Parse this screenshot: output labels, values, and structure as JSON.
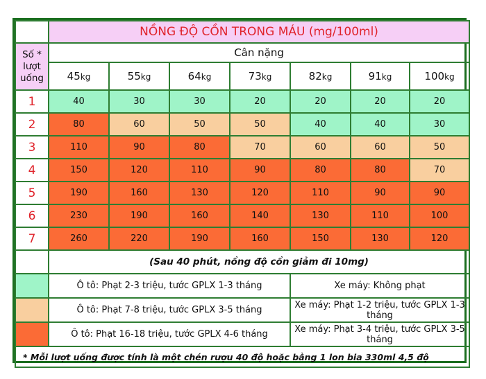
{
  "title": "NỒNG ĐỘ CỒN TRONG MÁU (mg/100ml)",
  "row_header": "Số * lượt uống",
  "col_group_header": "Cân nặng",
  "unit": "kg",
  "weights": [
    "45",
    "55",
    "64",
    "73",
    "82",
    "91",
    "100"
  ],
  "rows": [
    {
      "label": "1",
      "values": [
        "40",
        "30",
        "30",
        "20",
        "20",
        "20",
        "20"
      ],
      "levels": [
        "g",
        "g",
        "g",
        "g",
        "g",
        "g",
        "g"
      ]
    },
    {
      "label": "2",
      "values": [
        "80",
        "60",
        "50",
        "50",
        "40",
        "40",
        "30"
      ],
      "levels": [
        "o",
        "p",
        "p",
        "p",
        "g",
        "g",
        "g"
      ]
    },
    {
      "label": "3",
      "values": [
        "110",
        "90",
        "80",
        "70",
        "60",
        "60",
        "50"
      ],
      "levels": [
        "o",
        "o",
        "o",
        "p",
        "p",
        "p",
        "p"
      ]
    },
    {
      "label": "4",
      "values": [
        "150",
        "120",
        "110",
        "90",
        "80",
        "80",
        "70"
      ],
      "levels": [
        "o",
        "o",
        "o",
        "o",
        "o",
        "o",
        "p"
      ]
    },
    {
      "label": "5",
      "values": [
        "190",
        "160",
        "130",
        "120",
        "110",
        "90",
        "90"
      ],
      "levels": [
        "o",
        "o",
        "o",
        "o",
        "o",
        "o",
        "o"
      ]
    },
    {
      "label": "6",
      "values": [
        "230",
        "190",
        "160",
        "140",
        "130",
        "110",
        "100"
      ],
      "levels": [
        "o",
        "o",
        "o",
        "o",
        "o",
        "o",
        "o"
      ]
    },
    {
      "label": "7",
      "values": [
        "260",
        "220",
        "190",
        "160",
        "150",
        "130",
        "120"
      ],
      "levels": [
        "o",
        "o",
        "o",
        "o",
        "o",
        "o",
        "o"
      ]
    }
  ],
  "note": "(Sau 40 phút, nồng độ cồn giảm đi 10mg)",
  "legend": [
    {
      "color": "#9ff4c8",
      "car": "Ô tô: Phạt 2-3 triệu, tước GPLX 1-3 tháng",
      "moto": "Xe máy: Không phạt"
    },
    {
      "color": "#f9cf9f",
      "car": "Ô tô: Phạt 7-8 triệu, tước GPLX 3-5 tháng",
      "moto": "Xe máy: Phạt 1-2 triệu, tước GPLX 1-3 tháng"
    },
    {
      "color": "#fb6b36",
      "car": "Ô tô: Phạt 16-18 triệu, tước GPLX 4-6 tháng",
      "moto": "Xe máy: Phạt 3-4 triệu, tước GPLX 3-5 tháng"
    }
  ],
  "footnote": "* Mỗi lượt uống được tính là một chén rượu 40 độ hoặc bằng 1 lon bia 330ml 4,5 độ",
  "colors": {
    "green": "#9ff4c8",
    "peach": "#f9cf9f",
    "orange": "#fb6b36",
    "pink": "#f6cff6",
    "red_text": "#e0232a",
    "border": "#2e7d32"
  }
}
